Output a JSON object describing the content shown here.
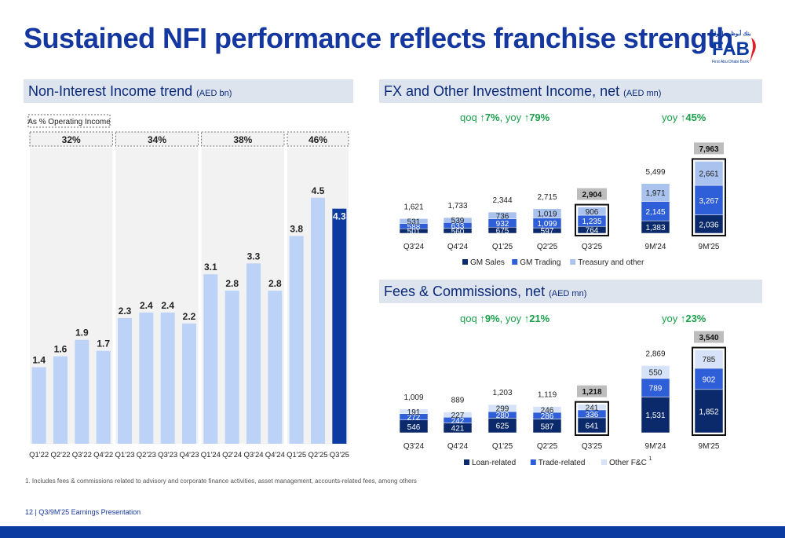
{
  "title": "Sustained NFI performance reflects franchise strength",
  "logo": {
    "text": "FAB",
    "arabic": "بنك أبوظبي الأول",
    "subtitle": "First Abu Dhabi Bank"
  },
  "left_panel": {
    "header": "Non-Interest Income trend",
    "unit": "(AED bn)",
    "pct_label": "As % Operating Income"
  },
  "fx_panel": {
    "header": "FX and Other Investment Income, net",
    "unit": "(AED mn)",
    "qoq_text": "qoq ",
    "qoq_val": "↑7%",
    "yoy_text": ", yoy ",
    "yoy_val": "↑79%",
    "yoy9m_text": "yoy ",
    "yoy9m_val": "↑45%"
  },
  "fee_panel": {
    "header": "Fees & Commissions, net",
    "unit": "(AED mn)",
    "qoq_text": "qoq ",
    "qoq_val": "↑9%",
    "yoy_text": ", yoy ",
    "yoy_val": "↑21%",
    "yoy9m_text": "yoy ",
    "yoy9m_val": "↑23%"
  },
  "footnote": "1. Includes fees & commissions related to advisory and corporate finance activities, asset management, accounts-related fees, among others",
  "page_info": "12  |  Q3/9M'25 Earnings Presentation",
  "colors": {
    "brand": "#1538a0",
    "navy": "#0b2a6b",
    "blue": "#2f5fd8",
    "light": "#a9c2ee",
    "pale": "#c9d9f7",
    "nfi": "#bcd3f7",
    "nfi_last": "#0b3aa0",
    "green": "#1aa04a"
  },
  "chart_data": [
    {
      "type": "bar",
      "title": "Non-Interest Income trend (AED bn)",
      "categories": [
        "Q1'22",
        "Q2'22",
        "Q3'22",
        "Q4'22",
        "Q1'23",
        "Q2'23",
        "Q3'23",
        "Q4'23",
        "Q1'24",
        "Q2'24",
        "Q3'24",
        "Q4'24",
        "Q1'25",
        "Q2'25",
        "Q3'25"
      ],
      "values": [
        1.4,
        1.6,
        1.9,
        1.7,
        2.3,
        2.4,
        2.4,
        2.2,
        3.1,
        2.8,
        3.3,
        2.8,
        3.8,
        4.5,
        4.3
      ],
      "labels": [
        "1.4",
        "1.6",
        "1.9",
        "1.7",
        "2.3",
        "2.4",
        "2.4",
        "2.2",
        "3.1",
        "2.8",
        "3.3",
        "2.8",
        "3.8",
        "4.5",
        "4.3"
      ],
      "ylim": [
        0,
        5.1
      ],
      "groups": [
        {
          "label": "32%",
          "from": 0,
          "to": 3
        },
        {
          "label": "34%",
          "from": 4,
          "to": 7
        },
        {
          "label": "38%",
          "from": 8,
          "to": 11
        },
        {
          "label": "46%",
          "from": 12,
          "to": 14
        }
      ]
    },
    {
      "type": "bar",
      "stacked": true,
      "title": "FX and Other Investment Income, net (AED mn)",
      "legend": [
        "GM Sales",
        "GM Trading",
        "Treasury and other"
      ],
      "categories": [
        "Q3'24",
        "Q4'24",
        "Q1'25",
        "Q2'25",
        "Q3'25"
      ],
      "series": [
        {
          "name": "GM Sales",
          "values": [
            501,
            560,
            675,
            597,
            764
          ],
          "labels": [
            "501",
            "560",
            "675",
            "597",
            "764"
          ]
        },
        {
          "name": "GM Trading",
          "values": [
            588,
            633,
            932,
            1099,
            1235
          ],
          "labels": [
            "588",
            "633",
            "932",
            "1,099",
            "1,235"
          ]
        },
        {
          "name": "Treasury and other",
          "values": [
            531,
            539,
            736,
            1019,
            906
          ],
          "labels": [
            "531",
            "539",
            "736",
            "1,019",
            "906"
          ]
        }
      ],
      "totals": [
        "1,621",
        "1,733",
        "2,344",
        "2,715",
        "2,904"
      ],
      "ytd_categories": [
        "9M'24",
        "9M'25"
      ],
      "ytd_series": [
        {
          "name": "GM Sales",
          "values": [
            1383,
            2036
          ],
          "labels": [
            "1,383",
            "2,036"
          ]
        },
        {
          "name": "GM Trading",
          "values": [
            2145,
            3267
          ],
          "labels": [
            "2,145",
            "3,267"
          ]
        },
        {
          "name": "Treasury and other",
          "values": [
            1971,
            2661
          ],
          "labels": [
            "1,971",
            "2,661"
          ]
        }
      ],
      "ytd_totals": [
        "5,499",
        "7,963"
      ]
    },
    {
      "type": "bar",
      "stacked": true,
      "title": "Fees & Commissions, net (AED mn)",
      "legend": [
        "Loan-related",
        "Trade-related",
        "Other F&C"
      ],
      "legend_footnote": "1",
      "categories": [
        "Q3'24",
        "Q4'24",
        "Q1'25",
        "Q2'25",
        "Q3'25"
      ],
      "series": [
        {
          "name": "Loan-related",
          "values": [
            546,
            421,
            625,
            587,
            641
          ],
          "labels": [
            "546",
            "421",
            "625",
            "587",
            "641"
          ]
        },
        {
          "name": "Trade-related",
          "values": [
            272,
            242,
            280,
            286,
            336
          ],
          "labels": [
            "272",
            "242",
            "280",
            "286",
            "336"
          ]
        },
        {
          "name": "Other F&C",
          "values": [
            191,
            227,
            299,
            246,
            241
          ],
          "labels": [
            "191",
            "227",
            "299",
            "246",
            "241"
          ]
        }
      ],
      "totals": [
        "1,009",
        "889",
        "1,203",
        "1,119",
        "1,218"
      ],
      "ytd_categories": [
        "9M'24",
        "9M'25"
      ],
      "ytd_series": [
        {
          "name": "Loan-related",
          "values": [
            1531,
            1852
          ],
          "labels": [
            "1,531",
            "1,852"
          ]
        },
        {
          "name": "Trade-related",
          "values": [
            789,
            902
          ],
          "labels": [
            "789",
            "902"
          ]
        },
        {
          "name": "Other F&C",
          "values": [
            550,
            785
          ],
          "labels": [
            "550",
            "785"
          ]
        }
      ],
      "ytd_totals": [
        "2,869",
        "3,540"
      ]
    }
  ]
}
